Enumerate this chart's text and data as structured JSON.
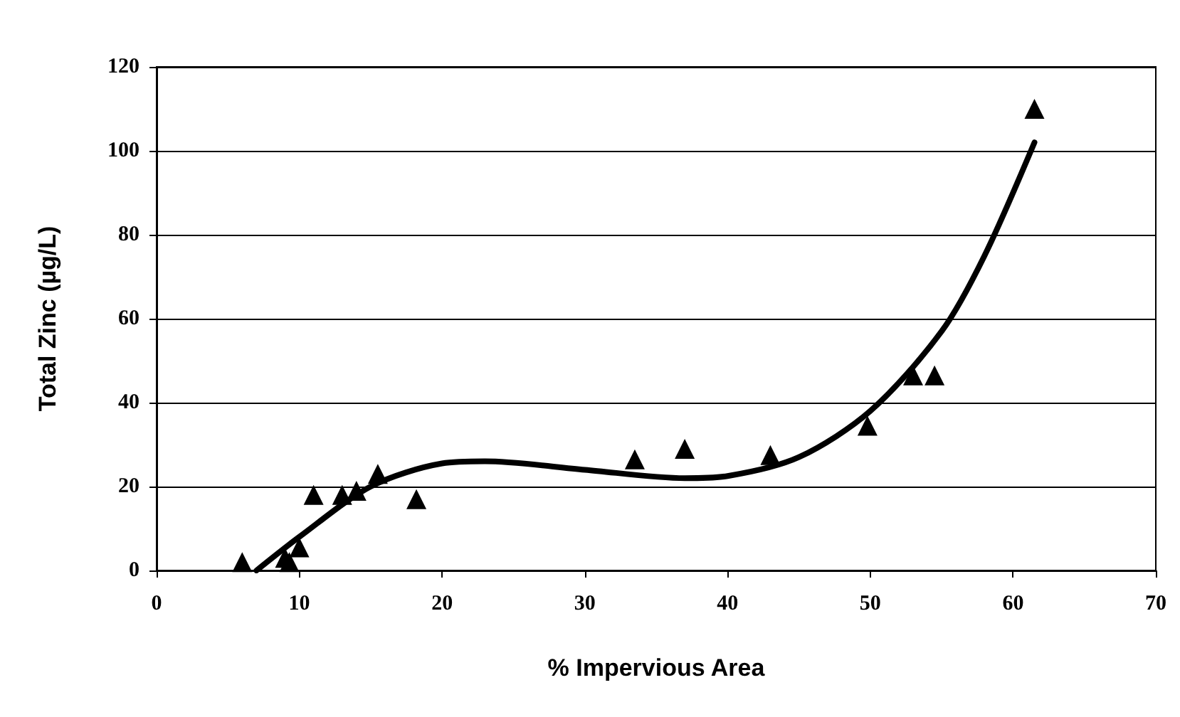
{
  "chart_data": {
    "type": "scatter",
    "xlabel": "% Impervious Area",
    "ylabel": "Total Zinc (µg/L)",
    "xlim": [
      0,
      70
    ],
    "xticks": [
      0,
      10,
      20,
      30,
      40,
      50,
      60,
      70
    ],
    "ylim": [
      0,
      120
    ],
    "yticks": [
      0,
      20,
      40,
      60,
      80,
      100,
      120
    ],
    "grid": "y",
    "series": [
      {
        "color": "#000000",
        "marker": "triangle",
        "x": [
          6,
          9,
          9.3,
          9.8,
          10,
          11,
          13,
          14,
          15.5,
          18.2,
          33.5,
          37,
          43,
          49.8,
          53,
          54.5,
          61.5
        ],
        "values": [
          2,
          3,
          2,
          null,
          5.5,
          18,
          18,
          19,
          23,
          17,
          26.5,
          29,
          27.5,
          34.5,
          46.5,
          46.5,
          110
        ]
      },
      {
        "type": "line",
        "color": "#000000",
        "marker": "none",
        "line_style": "solid",
        "x": [
          7,
          10,
          15,
          20,
          23,
          30,
          37,
          40,
          45,
          50,
          55,
          58,
          61.5
        ],
        "values": [
          0,
          8,
          20,
          25.5,
          26,
          24,
          22,
          22.5,
          27,
          38,
          57,
          75,
          102
        ]
      }
    ]
  }
}
